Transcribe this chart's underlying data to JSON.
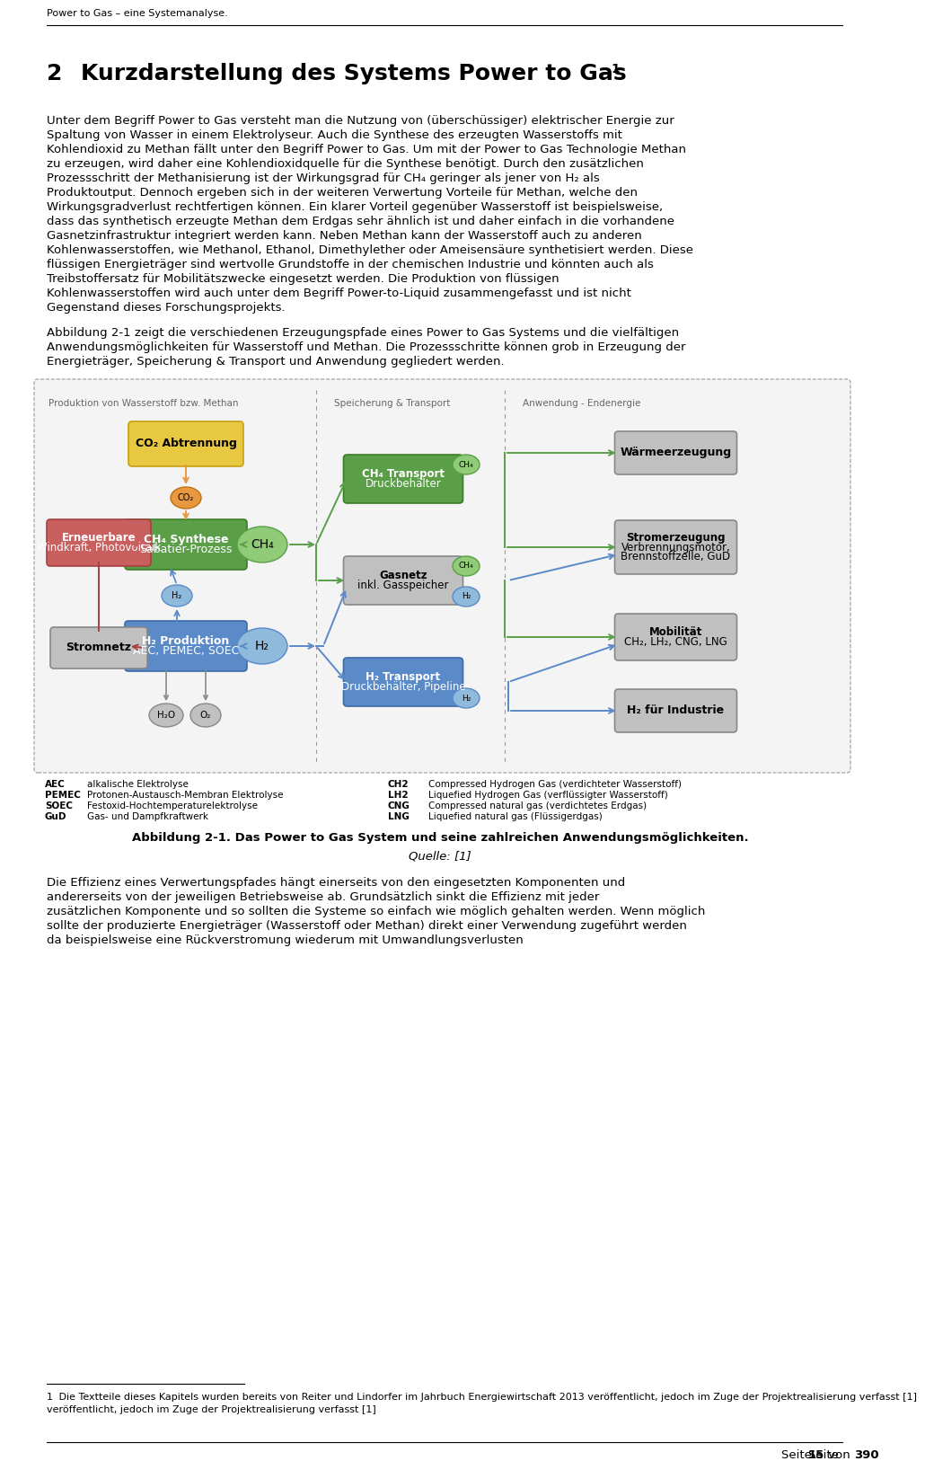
{
  "header_text": "Power to Gas – eine Systemanalyse.",
  "chapter_num": "2",
  "title_text": "Kurzdarstellung des Systems Power to Gas",
  "title_superscript": "1",
  "para1": "Unter dem Begriff Power to Gas versteht man die Nutzung von (überschüssiger) elektrischer Energie zur Spaltung von Wasser in einem Elektrolyseur. Auch die Synthese des erzeugten Wasserstoffs mit Kohlendioxid zu Methan fällt unter den Begriff Power to Gas. Um mit der Power to Gas Technologie Methan zu erzeugen, wird daher eine Kohlendioxidquelle für die Synthese benötigt. Durch den zusätzlichen Prozessschritt der Methanisierung ist der Wirkungsgrad für CH₄ geringer als jener von H₂ als Produktoutput. Dennoch ergeben sich in der weiteren Verwertung Vorteile für Methan, welche den Wirkungsgradverlust rechtfertigen können. Ein klarer Vorteil gegenüber Wasserstoff ist beispielsweise, dass das synthetisch erzeugte Methan dem Erdgas sehr ähnlich ist und daher einfach in die vorhandene Gasnetzinfrastruktur integriert werden kann. Neben Methan kann der Wasserstoff auch zu anderen Kohlenwasserstoffen, wie Methanol, Ethanol, Dimethylether oder Ameisensäure synthetisiert werden. Diese flüssigen Energieträger sind wertvolle Grundstoffe in der chemischen Industrie und könnten auch als Treibstoffersatz für Mobilitätszwecke eingesetzt werden. Die Produktion von flüssigen Kohlenwasserstoffen wird auch unter dem Begriff Power-to-Liquid zusammengefasst und ist nicht Gegenstand dieses Forschungsprojekts.",
  "para2": "Abbildung 2-1 zeigt die verschiedenen Erzeugungspfade eines Power to Gas Systems und die vielfältigen Anwendungsmöglichkeiten für Wasserstoff und Methan. Die Prozessschritte können grob in Erzeugung der Energieträger, Speicherung & Transport und Anwendung gegliedert werden.",
  "fig_section1": "Produktion von Wasserstoff bzw. Methan",
  "fig_section2": "Speicherung & Transport",
  "fig_section3": "Anwendung - Endenergie",
  "fig_caption": "Abbildung 2-1. Das Power to Gas System und seine zahlreichen Anwendungsmöglichkeiten.",
  "fig_source": "Quelle: [1]",
  "para3": "Die Effizienz eines Verwertungspfades hängt einerseits von den eingesetzten Komponenten und andererseits von der jeweiligen Betriebsweise ab. Grundsätzlich sinkt die Effizienz mit jeder zusätzlichen Komponente und so sollten die Systeme so einfach wie möglich gehalten werden. Wenn möglich sollte der produzierte Energieträger (Wasserstoff oder Methan) direkt einer Verwendung zugeführt werden da beispielsweise eine Rückverstromung wiederum mit Umwandlungsverlusten",
  "legend_left": [
    [
      "AEC",
      "alkalische Elektrolyse"
    ],
    [
      "PEMEC",
      "Protonen-Austausch-Membran Elektrolyse"
    ],
    [
      "SOEC",
      "Festoxid-Hochtemperaturelektrolyse"
    ],
    [
      "GuD",
      "Gas- und Dampfkraftwerk"
    ]
  ],
  "legend_right": [
    [
      "CH2",
      "Compressed Hydrogen Gas (verdichteter Wasserstoff)"
    ],
    [
      "LH2",
      "Liquefied Hydrogen Gas (verflüssigter Wasserstoff)"
    ],
    [
      "CNG",
      "Compressed natural gas (verdichtetes Erdgas)"
    ],
    [
      "LNG",
      "Liquefied natural gas (Flüssigerdgas)"
    ]
  ],
  "footnote_num": "1",
  "footnote_text": " Die Textteile dieses Kapitels wurden bereits von Reiter und Lindorfer im Jahrbuch Energiewirtschaft 2013 veröffentlicht, jedoch im Zuge der Projektrealisierung verfasst [1]",
  "page_text": "Seite ",
  "page_num": "15",
  "page_rest": " von ",
  "page_total": "390",
  "color_yellow_face": "#E8C840",
  "color_yellow_edge": "#C8A010",
  "color_green_face": "#5A9E48",
  "color_green_edge": "#3A7E28",
  "color_green_light_face": "#90CC78",
  "color_green_light_edge": "#5A9E48",
  "color_blue_face": "#5A8AC8",
  "color_blue_edge": "#3A6AA8",
  "color_blue_light_face": "#90BADC",
  "color_blue_light_edge": "#5A8AC8",
  "color_red_face": "#C86060",
  "color_red_edge": "#A84040",
  "color_gray_face": "#C0C0C0",
  "color_gray_edge": "#888888",
  "color_orange_face": "#E89840",
  "color_orange_edge": "#C07010",
  "color_bg_fig": "#F4F4F4"
}
